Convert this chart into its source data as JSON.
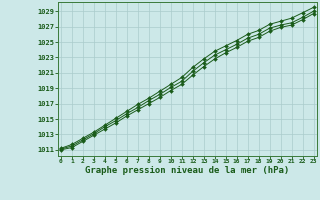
{
  "bg_color": "#cce8e8",
  "grid_color": "#aacccc",
  "line_color": "#1a5c1a",
  "marker_color": "#1a5c1a",
  "xlabel": "Graphe pression niveau de la mer (hPa)",
  "xlabel_fontsize": 6.5,
  "yticks": [
    1011,
    1013,
    1015,
    1017,
    1019,
    1021,
    1023,
    1025,
    1027,
    1029
  ],
  "xticks": [
    0,
    1,
    2,
    3,
    4,
    5,
    6,
    7,
    8,
    9,
    10,
    11,
    12,
    13,
    14,
    15,
    16,
    17,
    18,
    19,
    20,
    21,
    22,
    23
  ],
  "xlim": [
    -0.3,
    23.3
  ],
  "ylim": [
    1010.2,
    1030.2
  ],
  "line1_x": [
    0,
    1,
    2,
    3,
    4,
    5,
    6,
    7,
    8,
    9,
    10,
    11,
    12,
    13,
    14,
    15,
    16,
    17,
    18,
    19,
    20,
    21,
    22,
    23
  ],
  "line1_y": [
    1011.1,
    1011.5,
    1012.3,
    1013.1,
    1014.0,
    1014.8,
    1015.7,
    1016.5,
    1017.4,
    1018.2,
    1019.1,
    1019.9,
    1021.2,
    1022.3,
    1023.3,
    1024.0,
    1024.7,
    1025.5,
    1026.0,
    1026.8,
    1027.2,
    1027.5,
    1028.2,
    1029.0
  ],
  "line2_x": [
    0,
    1,
    2,
    3,
    4,
    5,
    6,
    7,
    8,
    9,
    10,
    11,
    12,
    13,
    14,
    15,
    16,
    17,
    18,
    19,
    20,
    21,
    22,
    23
  ],
  "line2_y": [
    1011.0,
    1011.3,
    1012.1,
    1012.9,
    1013.7,
    1014.5,
    1015.4,
    1016.2,
    1017.0,
    1017.8,
    1018.7,
    1019.5,
    1020.7,
    1021.8,
    1022.8,
    1023.6,
    1024.3,
    1025.1,
    1025.6,
    1026.4,
    1026.9,
    1027.2,
    1027.9,
    1028.7
  ],
  "line3_x": [
    0,
    1,
    2,
    3,
    4,
    5,
    6,
    7,
    8,
    9,
    10,
    11,
    12,
    13,
    14,
    15,
    16,
    17,
    18,
    19,
    20,
    21,
    22,
    23
  ],
  "line3_y": [
    1011.2,
    1011.7,
    1012.5,
    1013.3,
    1014.2,
    1015.1,
    1016.0,
    1016.9,
    1017.7,
    1018.6,
    1019.5,
    1020.4,
    1021.7,
    1022.8,
    1023.8,
    1024.5,
    1025.2,
    1026.0,
    1026.5,
    1027.3,
    1027.7,
    1028.1,
    1028.8,
    1029.5
  ]
}
